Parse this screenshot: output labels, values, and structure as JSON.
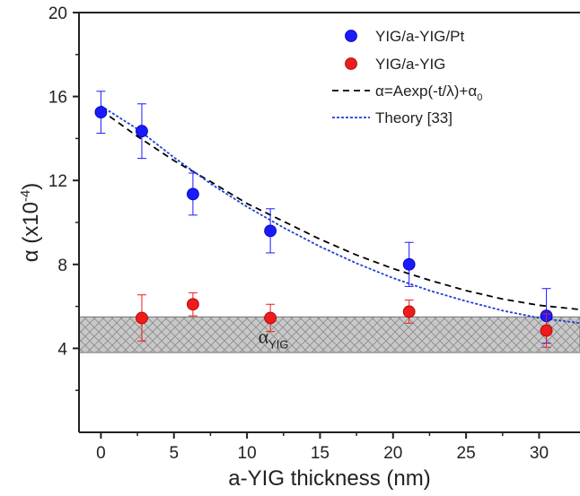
{
  "chart_data": {
    "type": "scatter",
    "xlabel": "a-YIG thickness (nm)",
    "ylabel": "α (x10",
    "ylabel_exp": "-4",
    "ylabel_close": ")",
    "xlim": [
      -1.5,
      32.8
    ],
    "ylim": [
      0,
      20
    ],
    "xticks": [
      "0",
      "5",
      "10",
      "15",
      "20",
      "25",
      "30"
    ],
    "yticks": [
      "4",
      "8",
      "12",
      "16",
      "20"
    ],
    "colors": {
      "blue": "#1a1aff",
      "red": "#ee1c1c",
      "fit": "#000000",
      "theory": "#1f3fd8",
      "band_fill": "#c8c8c8",
      "band_stroke": "#777777"
    },
    "series": [
      {
        "name": "YIG/a-YIG/Pt",
        "marker": "circle",
        "color": "#1a1aff",
        "x": [
          0,
          2.8,
          6.3,
          11.6,
          21.1,
          30.5
        ],
        "y": [
          15.25,
          14.35,
          11.35,
          9.6,
          8.0,
          5.55
        ],
        "err": [
          1.0,
          1.3,
          1.0,
          1.05,
          1.05,
          1.3
        ]
      },
      {
        "name": "YIG/a-YIG",
        "marker": "circle",
        "color": "#ee1c1c",
        "x": [
          2.8,
          6.3,
          11.6,
          21.1,
          30.5
        ],
        "y": [
          5.45,
          6.1,
          5.45,
          5.75,
          4.85
        ],
        "err": [
          1.1,
          0.55,
          0.65,
          0.55,
          0.8
        ]
      },
      {
        "name": "α=Aexp(-t/λ)+α",
        "name_sub": "0",
        "style": "dashed",
        "color": "#000000",
        "x": [
          0,
          2.5,
          5,
          7.5,
          10,
          12.5,
          15,
          17.5,
          20,
          22.5,
          25,
          27.5,
          30,
          32.8
        ],
        "y": [
          15.35,
          14.1,
          12.95,
          11.95,
          10.9,
          10.05,
          9.2,
          8.45,
          7.8,
          7.25,
          6.75,
          6.35,
          6.05,
          5.85
        ]
      },
      {
        "name": "Theory [33]",
        "style": "dotted",
        "color": "#1f3fd8",
        "x": [
          0,
          2.5,
          5,
          7.5,
          10,
          12.5,
          15,
          17.5,
          20,
          22.5,
          25,
          27.5,
          30,
          32.8
        ],
        "y": [
          15.55,
          14.45,
          13.1,
          11.85,
          10.75,
          9.75,
          8.85,
          8.05,
          7.35,
          6.75,
          6.25,
          5.8,
          5.45,
          5.2
        ]
      }
    ],
    "band": {
      "y0": 3.8,
      "y1": 5.5,
      "pattern": "cross-hatch"
    },
    "annotation": {
      "text": "α",
      "sub": "YIG",
      "x": 12,
      "y": 4.5
    },
    "legend_position": "top-right",
    "grid": false
  }
}
